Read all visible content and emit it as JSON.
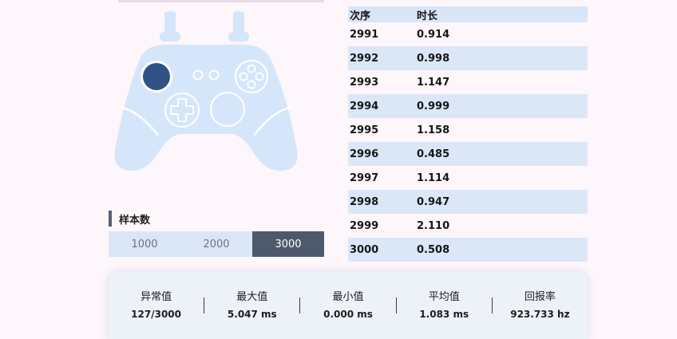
{
  "colors": {
    "controller_body": "#d6e6fa",
    "controller_lines": "#ffffff",
    "stick_active": "#2f5386",
    "accent_dark": "#4e5a6b",
    "row_highlight": "#dbe7f7"
  },
  "samples": {
    "title": "样本数",
    "options": [
      "1000",
      "2000",
      "3000"
    ],
    "selected": "3000"
  },
  "table": {
    "headers": [
      "次序",
      "时长"
    ],
    "rows": [
      [
        "2991",
        "0.914"
      ],
      [
        "2992",
        "0.998"
      ],
      [
        "2993",
        "1.147"
      ],
      [
        "2994",
        "0.999"
      ],
      [
        "2995",
        "1.158"
      ],
      [
        "2996",
        "0.485"
      ],
      [
        "2997",
        "1.114"
      ],
      [
        "2998",
        "0.947"
      ],
      [
        "2999",
        "2.110"
      ],
      [
        "3000",
        "0.508"
      ]
    ]
  },
  "stats": [
    {
      "label": "异常值",
      "value": "127/3000"
    },
    {
      "label": "最大值",
      "value": "5.047 ms"
    },
    {
      "label": "最小值",
      "value": "0.000 ms"
    },
    {
      "label": "平均值",
      "value": "1.083 ms"
    },
    {
      "label": "回报率",
      "value": "923.733 hz"
    }
  ]
}
